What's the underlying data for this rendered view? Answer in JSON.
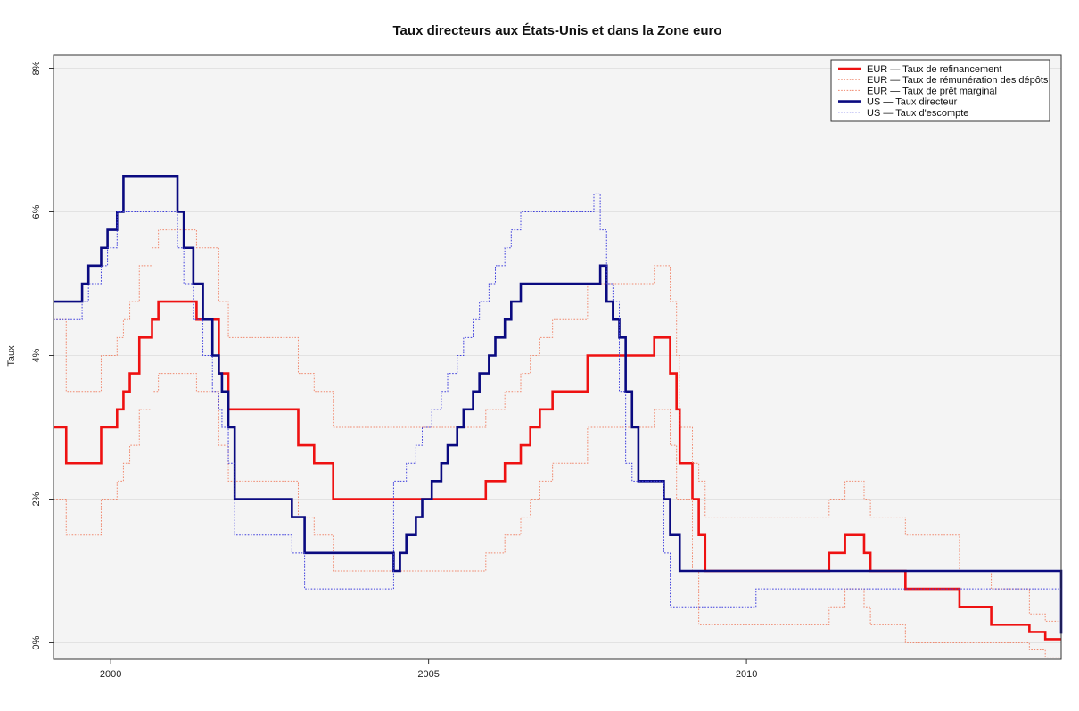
{
  "chart_data": {
    "type": "line",
    "title": "Taux directeurs aux États-Unis et dans la Zone euro",
    "xlabel": "",
    "ylabel": "Taux",
    "xlim": [
      1999.1,
      2014.95
    ],
    "ylim": [
      -0.0023,
      0.0818
    ],
    "x_ticks": [
      2000,
      2005,
      2010
    ],
    "x_tick_labels": [
      "2000",
      "2005",
      "2010"
    ],
    "y_ticks": [
      0,
      0.02,
      0.04,
      0.06,
      0.08
    ],
    "y_tick_labels": [
      "0%",
      "2%",
      "4%",
      "6%",
      "8%"
    ],
    "grid": "horizontal",
    "background": "#f4f4f4",
    "legend_position": "top-right",
    "series": [
      {
        "name": "EUR — Taux de refinancement",
        "color": "#ee1111",
        "style": "solid",
        "width": "thick",
        "step": true,
        "x": [
          1999.1,
          1999.3,
          1999.85,
          2000.1,
          2000.2,
          2000.3,
          2000.45,
          2000.5,
          2000.65,
          2000.75,
          2001.35,
          2001.7,
          2001.85,
          2002.95,
          2003.2,
          2003.5,
          2005.9,
          2006.2,
          2006.45,
          2006.6,
          2006.75,
          2006.95,
          2007.5,
          2008.55,
          2008.8,
          2008.9,
          2008.95,
          2009.15,
          2009.25,
          2009.35,
          2011.3,
          2011.55,
          2011.85,
          2011.95,
          2012.5,
          2013.35,
          2013.85,
          2014.45,
          2014.7,
          2014.95
        ],
        "y": [
          0.03,
          0.025,
          0.03,
          0.0325,
          0.035,
          0.0375,
          0.0425,
          0.0425,
          0.045,
          0.0475,
          0.045,
          0.0375,
          0.0325,
          0.0275,
          0.025,
          0.02,
          0.0225,
          0.025,
          0.0275,
          0.03,
          0.0325,
          0.035,
          0.04,
          0.0425,
          0.0375,
          0.0325,
          0.025,
          0.02,
          0.015,
          0.01,
          0.0125,
          0.015,
          0.0125,
          0.01,
          0.0075,
          0.005,
          0.0025,
          0.0015,
          0.0005,
          0.0005
        ]
      },
      {
        "name": "EUR — Taux de rémunération des dépôts",
        "color": "#f08a70",
        "style": "dotted",
        "width": "thin",
        "step": true,
        "x": [
          1999.1,
          1999.3,
          1999.85,
          2000.1,
          2000.2,
          2000.3,
          2000.45,
          2000.5,
          2000.65,
          2000.75,
          2001.35,
          2001.7,
          2001.85,
          2002.95,
          2003.2,
          2003.5,
          2005.9,
          2006.2,
          2006.45,
          2006.6,
          2006.75,
          2006.95,
          2007.5,
          2008.55,
          2008.8,
          2008.9,
          2008.95,
          2009.15,
          2009.25,
          2009.35,
          2011.3,
          2011.55,
          2011.85,
          2011.95,
          2012.5,
          2013.35,
          2013.85,
          2014.45,
          2014.7,
          2014.95
        ],
        "y": [
          0.02,
          0.015,
          0.02,
          0.0225,
          0.025,
          0.0275,
          0.0325,
          0.0325,
          0.035,
          0.0375,
          0.035,
          0.0275,
          0.0225,
          0.0175,
          0.015,
          0.01,
          0.0125,
          0.015,
          0.0175,
          0.02,
          0.0225,
          0.025,
          0.03,
          0.0325,
          0.0275,
          0.02,
          0.02,
          0.01,
          0.0025,
          0.0025,
          0.005,
          0.0075,
          0.005,
          0.0025,
          0.0,
          0.0,
          0.0,
          -0.001,
          -0.002,
          -0.002
        ]
      },
      {
        "name": "EUR — Taux de  prêt marginal",
        "color": "#f08a70",
        "style": "dotted",
        "width": "thin",
        "step": true,
        "x": [
          1999.1,
          1999.3,
          1999.85,
          2000.1,
          2000.2,
          2000.3,
          2000.45,
          2000.5,
          2000.65,
          2000.75,
          2001.35,
          2001.7,
          2001.85,
          2002.95,
          2003.2,
          2003.5,
          2005.9,
          2006.2,
          2006.45,
          2006.6,
          2006.75,
          2006.95,
          2007.5,
          2008.55,
          2008.8,
          2008.9,
          2008.95,
          2009.15,
          2009.25,
          2009.35,
          2011.3,
          2011.55,
          2011.85,
          2011.95,
          2012.5,
          2013.35,
          2013.85,
          2014.45,
          2014.7,
          2014.95
        ],
        "y": [
          0.045,
          0.035,
          0.04,
          0.0425,
          0.045,
          0.0475,
          0.0525,
          0.0525,
          0.055,
          0.0575,
          0.055,
          0.0475,
          0.0425,
          0.0375,
          0.035,
          0.03,
          0.0325,
          0.035,
          0.0375,
          0.04,
          0.0425,
          0.045,
          0.05,
          0.0525,
          0.0475,
          0.04,
          0.03,
          0.025,
          0.0225,
          0.0175,
          0.02,
          0.0225,
          0.02,
          0.0175,
          0.015,
          0.01,
          0.0075,
          0.004,
          0.003,
          0.003
        ]
      },
      {
        "name": "US — Taux directeur",
        "color": "#0a0a80",
        "style": "solid",
        "width": "thick",
        "step": true,
        "x": [
          1999.1,
          1999.55,
          1999.65,
          1999.85,
          1999.95,
          2000.1,
          2000.2,
          2000.35,
          2001.05,
          2001.15,
          2001.3,
          2001.45,
          2001.6,
          2001.7,
          2001.75,
          2001.85,
          2001.95,
          2002.85,
          2003.05,
          2004.45,
          2004.55,
          2004.65,
          2004.8,
          2004.9,
          2005.05,
          2005.2,
          2005.3,
          2005.45,
          2005.55,
          2005.7,
          2005.8,
          2005.95,
          2006.05,
          2006.2,
          2006.3,
          2006.45,
          2007.7,
          2007.8,
          2007.9,
          2008.0,
          2008.1,
          2008.2,
          2008.3,
          2008.7,
          2008.8,
          2008.95,
          2014.95
        ],
        "y": [
          0.0475,
          0.05,
          0.0525,
          0.055,
          0.0575,
          0.06,
          0.065,
          0.065,
          0.06,
          0.055,
          0.05,
          0.045,
          0.04,
          0.0375,
          0.035,
          0.03,
          0.02,
          0.0175,
          0.0125,
          0.01,
          0.0125,
          0.015,
          0.0175,
          0.02,
          0.0225,
          0.025,
          0.0275,
          0.03,
          0.0325,
          0.035,
          0.0375,
          0.04,
          0.0425,
          0.045,
          0.0475,
          0.05,
          0.0525,
          0.0475,
          0.045,
          0.0425,
          0.035,
          0.03,
          0.0225,
          0.02,
          0.015,
          0.01,
          0.00125
        ]
      },
      {
        "name": "US — Taux d'escompte",
        "color": "#4040dd",
        "style": "dotted",
        "width": "thin",
        "step": true,
        "x": [
          1999.1,
          1999.55,
          1999.65,
          1999.85,
          1999.95,
          2000.1,
          2000.2,
          2000.35,
          2001.05,
          2001.15,
          2001.3,
          2001.45,
          2001.6,
          2001.7,
          2001.75,
          2001.85,
          2001.95,
          2002.85,
          2003.05,
          2004.45,
          2004.55,
          2004.65,
          2004.8,
          2004.9,
          2005.05,
          2005.2,
          2005.3,
          2005.45,
          2005.55,
          2005.7,
          2005.8,
          2005.95,
          2006.05,
          2006.2,
          2006.3,
          2006.45,
          2007.6,
          2007.7,
          2007.8,
          2007.9,
          2008.0,
          2008.1,
          2008.2,
          2008.3,
          2008.7,
          2008.8,
          2008.95,
          2010.15,
          2014.95
        ],
        "y": [
          0.045,
          0.0475,
          0.05,
          0.0525,
          0.055,
          0.06,
          0.06,
          0.06,
          0.055,
          0.05,
          0.045,
          0.04,
          0.035,
          0.0325,
          0.03,
          0.025,
          0.015,
          0.0125,
          0.0075,
          0.0225,
          0.0225,
          0.025,
          0.0275,
          0.03,
          0.0325,
          0.035,
          0.0375,
          0.04,
          0.0425,
          0.045,
          0.0475,
          0.05,
          0.0525,
          0.055,
          0.0575,
          0.06,
          0.0625,
          0.0575,
          0.05,
          0.0475,
          0.035,
          0.025,
          0.0225,
          0.0225,
          0.0125,
          0.005,
          0.005,
          0.0075,
          0.0075
        ]
      }
    ]
  }
}
